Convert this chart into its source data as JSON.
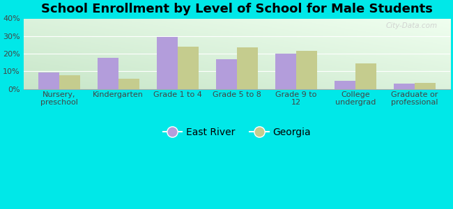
{
  "title": "School Enrollment by Level of School for Male Students",
  "categories": [
    "Nursery,\npreschool",
    "Kindergarten",
    "Grade 1 to 4",
    "Grade 5 to 8",
    "Grade 9 to\n12",
    "College\nundergrad",
    "Graduate or\nprofessional"
  ],
  "east_river": [
    9.5,
    17.5,
    29.5,
    17.0,
    20.0,
    4.5,
    3.0
  ],
  "georgia": [
    8.0,
    6.0,
    24.0,
    23.5,
    21.5,
    14.5,
    3.5
  ],
  "east_river_color": "#b39ddb",
  "georgia_color": "#c5cc8e",
  "background_color": "#00e8e8",
  "ylim": [
    0,
    40
  ],
  "yticks": [
    0,
    10,
    20,
    30,
    40
  ],
  "ytick_labels": [
    "0%",
    "10%",
    "20%",
    "30%",
    "40%"
  ],
  "bar_width": 0.35,
  "legend_labels": [
    "East River",
    "Georgia"
  ],
  "title_fontsize": 13,
  "tick_fontsize": 8,
  "legend_fontsize": 10,
  "watermark": "City-Data.com",
  "grad_bottom_left": "#c8e6c9",
  "grad_top_right": "#f0fff0"
}
